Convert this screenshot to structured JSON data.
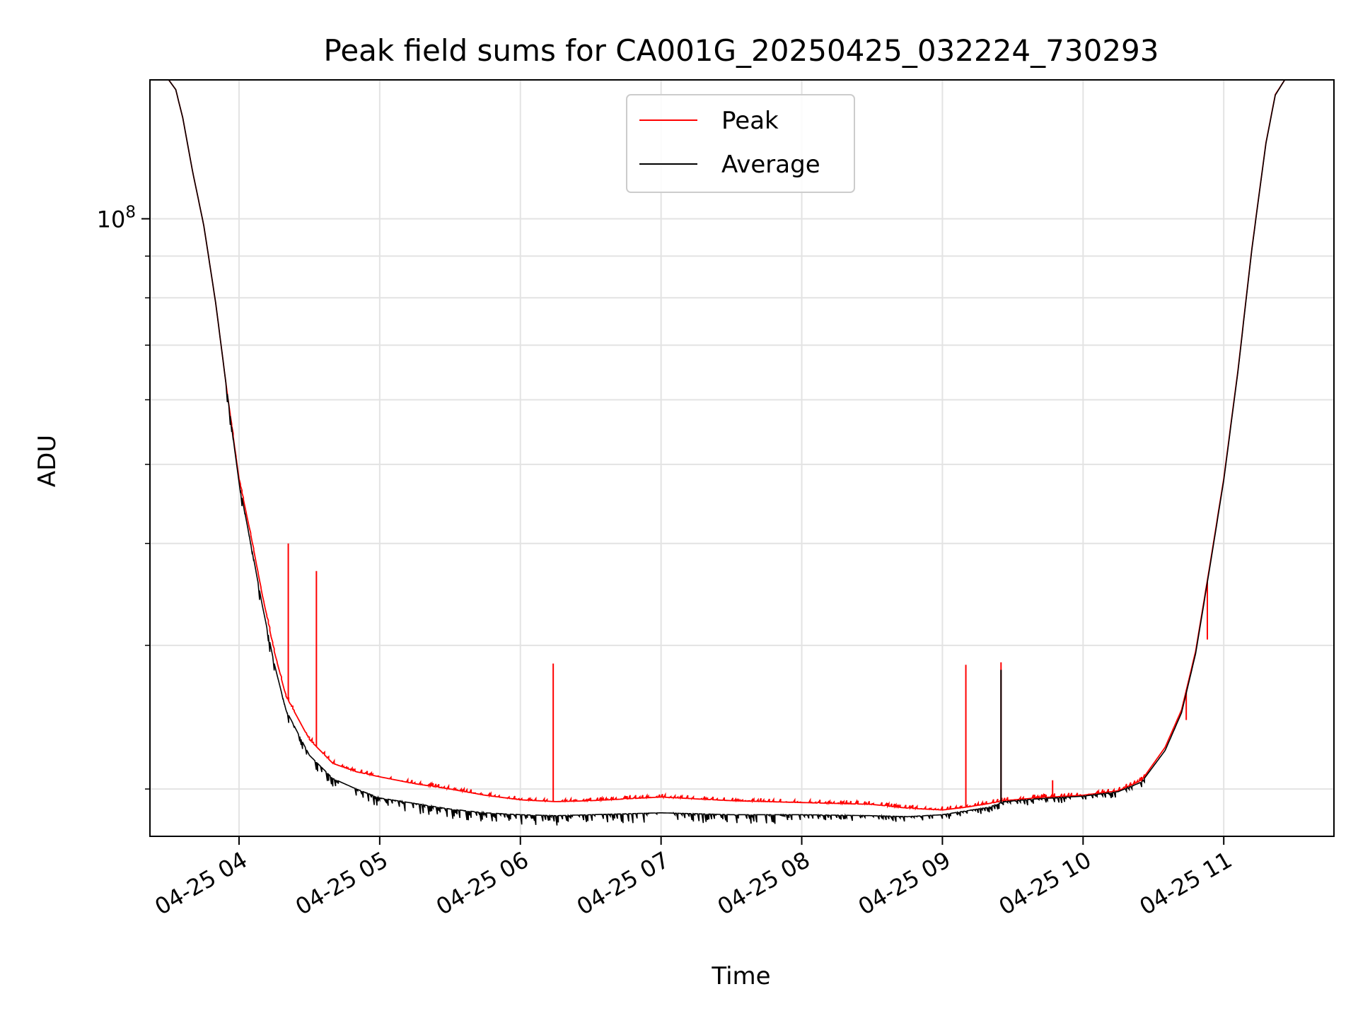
{
  "chart_data": {
    "type": "line",
    "title": "Peak field sums for CA001G_20250425_032224_730293",
    "xlabel": "Time",
    "ylabel": "ADU",
    "yscale": "log",
    "grid": true,
    "legend_position": "top-center",
    "x_range": [
      "2025-04-25 03:22",
      "2025-04-25 11:47"
    ],
    "y_range": [
      17500000,
      148000000
    ],
    "x_ticks": [
      {
        "value": "2025-04-25 04:00",
        "label": "04-25 04"
      },
      {
        "value": "2025-04-25 05:00",
        "label": "04-25 05"
      },
      {
        "value": "2025-04-25 06:00",
        "label": "04-25 06"
      },
      {
        "value": "2025-04-25 07:00",
        "label": "04-25 07"
      },
      {
        "value": "2025-04-25 08:00",
        "label": "04-25 08"
      },
      {
        "value": "2025-04-25 09:00",
        "label": "04-25 09"
      },
      {
        "value": "2025-04-25 10:00",
        "label": "04-25 10"
      },
      {
        "value": "2025-04-25 11:00",
        "label": "04-25 11"
      }
    ],
    "y_major_ticks": [
      {
        "value": 100000000,
        "base": "10",
        "exponent": "8"
      }
    ],
    "y_minor_ticks": [
      20000000,
      30000000,
      40000000,
      50000000,
      60000000,
      70000000,
      80000000,
      90000000
    ],
    "series": [
      {
        "name": "Peak",
        "color": "#ff0000",
        "points": [
          [
            "2025-04-25 03:22",
            148000000
          ],
          [
            "2025-04-25 03:30",
            148000000
          ],
          [
            "2025-04-25 03:33",
            144000000
          ],
          [
            "2025-04-25 03:36",
            133000000
          ],
          [
            "2025-04-25 03:40",
            115000000
          ],
          [
            "2025-04-25 03:45",
            98000000
          ],
          [
            "2025-04-25 03:50",
            79000000
          ],
          [
            "2025-04-25 03:55",
            61000000
          ],
          [
            "2025-04-25 04:00",
            48000000
          ],
          [
            "2025-04-25 04:05",
            41000000
          ],
          [
            "2025-04-25 04:10",
            34500000
          ],
          [
            "2025-04-25 04:15",
            29500000
          ],
          [
            "2025-04-25 04:20",
            26000000
          ],
          [
            "2025-04-25 04:30",
            23000000
          ],
          [
            "2025-04-25 04:40",
            21500000
          ],
          [
            "2025-04-25 04:50",
            21000000
          ],
          [
            "2025-04-25 05:00",
            20700000
          ],
          [
            "2025-04-25 05:15",
            20300000
          ],
          [
            "2025-04-25 05:30",
            20000000
          ],
          [
            "2025-04-25 05:45",
            19650000
          ],
          [
            "2025-04-25 06:00",
            19400000
          ],
          [
            "2025-04-25 06:15",
            19300000
          ],
          [
            "2025-04-25 06:30",
            19350000
          ],
          [
            "2025-04-25 06:45",
            19450000
          ],
          [
            "2025-04-25 07:00",
            19550000
          ],
          [
            "2025-04-25 07:15",
            19450000
          ],
          [
            "2025-04-25 07:30",
            19350000
          ],
          [
            "2025-04-25 08:00",
            19250000
          ],
          [
            "2025-04-25 08:30",
            19150000
          ],
          [
            "2025-04-25 08:45",
            18950000
          ],
          [
            "2025-04-25 09:00",
            18850000
          ],
          [
            "2025-04-25 09:10",
            19000000
          ],
          [
            "2025-04-25 09:20",
            19200000
          ],
          [
            "2025-04-25 09:26",
            19350000
          ],
          [
            "2025-04-25 09:40",
            19500000
          ],
          [
            "2025-04-25 10:00",
            19650000
          ],
          [
            "2025-04-25 10:15",
            19900000
          ],
          [
            "2025-04-25 10:25",
            20500000
          ],
          [
            "2025-04-25 10:35",
            22500000
          ],
          [
            "2025-04-25 10:42",
            25000000
          ],
          [
            "2025-04-25 10:48",
            29500000
          ],
          [
            "2025-04-25 10:54",
            37500000
          ],
          [
            "2025-04-25 11:00",
            48000000
          ],
          [
            "2025-04-25 11:06",
            65000000
          ],
          [
            "2025-04-25 11:12",
            92000000
          ],
          [
            "2025-04-25 11:18",
            124000000
          ],
          [
            "2025-04-25 11:22",
            142000000
          ],
          [
            "2025-04-25 11:26",
            148000000
          ],
          [
            "2025-04-25 11:47",
            148000000
          ]
        ],
        "spikes": [
          {
            "x": "2025-04-25 04:21",
            "y": 40000000
          },
          {
            "x": "2025-04-25 04:33",
            "y": 37000000
          },
          {
            "x": "2025-04-25 06:14",
            "y": 28500000
          },
          {
            "x": "2025-04-25 09:10",
            "y": 28400000
          },
          {
            "x": "2025-04-25 09:25",
            "y": 28600000
          },
          {
            "x": "2025-04-25 09:47",
            "y": 20500000
          },
          {
            "x": "2025-04-25 10:44",
            "y": 24300000
          },
          {
            "x": "2025-04-25 10:53",
            "y": 30500000
          }
        ]
      },
      {
        "name": "Average",
        "color": "#000000",
        "points": [
          [
            "2025-04-25 03:22",
            148000000
          ],
          [
            "2025-04-25 03:30",
            148000000
          ],
          [
            "2025-04-25 03:33",
            144000000
          ],
          [
            "2025-04-25 03:36",
            133000000
          ],
          [
            "2025-04-25 03:40",
            115000000
          ],
          [
            "2025-04-25 03:45",
            98000000
          ],
          [
            "2025-04-25 03:50",
            79000000
          ],
          [
            "2025-04-25 03:55",
            61000000
          ],
          [
            "2025-04-25 04:00",
            47500000
          ],
          [
            "2025-04-25 04:05",
            40000000
          ],
          [
            "2025-04-25 04:10",
            33500000
          ],
          [
            "2025-04-25 04:15",
            28500000
          ],
          [
            "2025-04-25 04:20",
            25000000
          ],
          [
            "2025-04-25 04:30",
            22000000
          ],
          [
            "2025-04-25 04:40",
            20600000
          ],
          [
            "2025-04-25 04:50",
            20000000
          ],
          [
            "2025-04-25 05:00",
            19500000
          ],
          [
            "2025-04-25 05:15",
            19200000
          ],
          [
            "2025-04-25 05:30",
            18900000
          ],
          [
            "2025-04-25 05:45",
            18700000
          ],
          [
            "2025-04-25 06:00",
            18600000
          ],
          [
            "2025-04-25 06:15",
            18550000
          ],
          [
            "2025-04-25 06:30",
            18600000
          ],
          [
            "2025-04-25 06:45",
            18650000
          ],
          [
            "2025-04-25 07:00",
            18700000
          ],
          [
            "2025-04-25 07:15",
            18650000
          ],
          [
            "2025-04-25 07:30",
            18600000
          ],
          [
            "2025-04-25 08:00",
            18600000
          ],
          [
            "2025-04-25 08:30",
            18550000
          ],
          [
            "2025-04-25 08:45",
            18500000
          ],
          [
            "2025-04-25 09:00",
            18600000
          ],
          [
            "2025-04-25 09:10",
            18800000
          ],
          [
            "2025-04-25 09:20",
            19000000
          ],
          [
            "2025-04-25 09:26",
            19300000
          ],
          [
            "2025-04-25 09:40",
            19450000
          ],
          [
            "2025-04-25 10:00",
            19600000
          ],
          [
            "2025-04-25 10:15",
            19850000
          ],
          [
            "2025-04-25 10:25",
            20400000
          ],
          [
            "2025-04-25 10:35",
            22300000
          ],
          [
            "2025-04-25 10:42",
            24800000
          ],
          [
            "2025-04-25 10:48",
            29300000
          ],
          [
            "2025-04-25 10:54",
            37300000
          ],
          [
            "2025-04-25 11:00",
            47800000
          ],
          [
            "2025-04-25 11:06",
            64800000
          ],
          [
            "2025-04-25 11:12",
            91800000
          ],
          [
            "2025-04-25 11:18",
            123800000
          ],
          [
            "2025-04-25 11:22",
            141800000
          ],
          [
            "2025-04-25 11:26",
            148000000
          ],
          [
            "2025-04-25 11:47",
            148000000
          ]
        ],
        "spikes": [
          {
            "x": "2025-04-25 09:25",
            "y": 28000000
          }
        ]
      }
    ]
  }
}
